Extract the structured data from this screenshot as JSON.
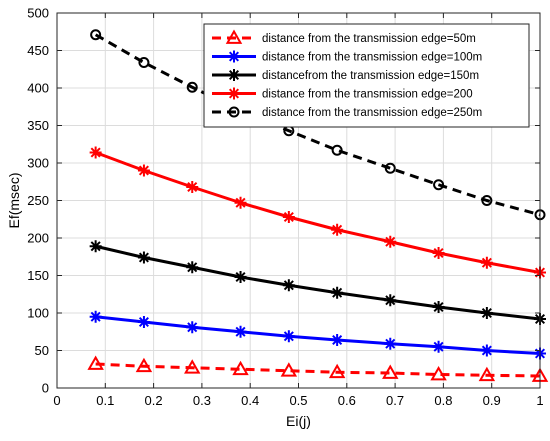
{
  "chart_data": {
    "type": "line",
    "title": "",
    "xlabel": "Ei(j)",
    "ylabel": "Ef(msec)",
    "xlim": [
      0,
      1
    ],
    "ylim": [
      0,
      500
    ],
    "xticks": [
      "0",
      "0.1",
      "0.2",
      "0.3",
      "0.4",
      "0.5",
      "0.6",
      "0.7",
      "0.8",
      "0.9",
      "1"
    ],
    "yticks": [
      "0",
      "50",
      "100",
      "150",
      "200",
      "250",
      "300",
      "350",
      "400",
      "450",
      "500"
    ],
    "grid": true,
    "legend_position": "top-right",
    "x": [
      0.08,
      0.18,
      0.28,
      0.38,
      0.48,
      0.58,
      0.69,
      0.79,
      0.89,
      1.0
    ],
    "series": [
      {
        "name": "distance from the transmission edge=50m",
        "values": [
          32,
          29,
          27,
          25,
          23,
          21,
          20,
          18,
          17,
          16
        ],
        "color": "#ff0000",
        "dash": "dashed",
        "marker": "triangle"
      },
      {
        "name": "distance from the transmission edge=100m",
        "values": [
          95,
          88,
          81,
          75,
          69,
          64,
          59,
          55,
          50,
          46
        ],
        "color": "#0000ff",
        "dash": "solid",
        "marker": "asterisk"
      },
      {
        "name": "distancefrom the transmission edge=150m",
        "values": [
          189,
          174,
          161,
          148,
          137,
          127,
          117,
          108,
          100,
          92
        ],
        "color": "#000000",
        "dash": "solid",
        "marker": "asterisk"
      },
      {
        "name": "distance from the transmission edge=200",
        "values": [
          314,
          290,
          268,
          247,
          228,
          211,
          195,
          180,
          167,
          154
        ],
        "color": "#ff0000",
        "dash": "solid",
        "marker": "asterisk"
      },
      {
        "name": "distance from the transmission edge=250m",
        "values": [
          471,
          434,
          401,
          370,
          343,
          317,
          293,
          271,
          250,
          231
        ],
        "color": "#000000",
        "dash": "dashed",
        "marker": "circle"
      }
    ]
  }
}
